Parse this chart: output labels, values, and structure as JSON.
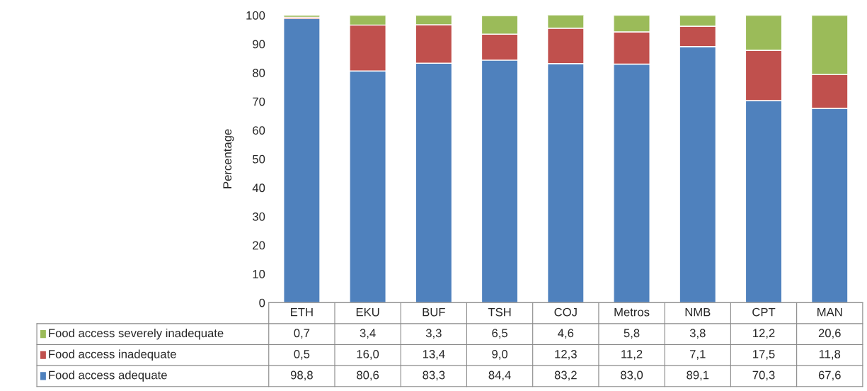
{
  "chart_data": {
    "type": "bar",
    "stacked": true,
    "ylabel": "Percentage",
    "categories": [
      "ETH",
      "EKU",
      "BUF",
      "TSH",
      "COJ",
      "Metros",
      "NMB",
      "CPT",
      "MAN"
    ],
    "series": [
      {
        "name": "Food access adequate",
        "color": "#4f81bd",
        "values": [
          98.8,
          80.6,
          83.3,
          84.4,
          83.2,
          83.0,
          89.1,
          70.3,
          67.6
        ],
        "value_labels": [
          "98,8",
          "80,6",
          "83,3",
          "84,4",
          "83,2",
          "83,0",
          "89,1",
          "70,3",
          "67,6"
        ]
      },
      {
        "name": "Food access inadequate",
        "color": "#c0504d",
        "values": [
          0.5,
          16.0,
          13.4,
          9.0,
          12.3,
          11.2,
          7.1,
          17.5,
          11.8
        ],
        "value_labels": [
          "0,5",
          "16,0",
          "13,4",
          "9,0",
          "12,3",
          "11,2",
          "7,1",
          "17,5",
          "11,8"
        ]
      },
      {
        "name": "Food access severely inadequate",
        "color": "#9bbb59",
        "values": [
          0.7,
          3.4,
          3.3,
          6.5,
          4.6,
          5.8,
          3.8,
          12.2,
          20.6
        ],
        "value_labels": [
          "0,7",
          "3,4",
          "3,3",
          "6,5",
          "4,6",
          "5,8",
          "3,8",
          "12,2",
          "20,6"
        ]
      }
    ],
    "ylim": [
      0,
      100
    ],
    "yticks": [
      0,
      10,
      20,
      30,
      40,
      50,
      60,
      70,
      80,
      90,
      100
    ],
    "grid": false,
    "legend": "bottom",
    "tick_labels": "y"
  }
}
